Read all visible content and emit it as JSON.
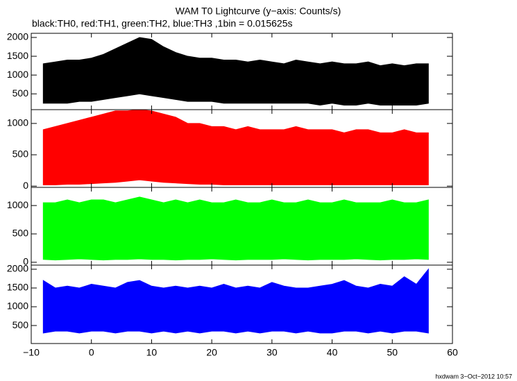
{
  "title": "WAM T0 Lightcurve (y−axis: Counts/s)",
  "subtitle": "black:TH0, red:TH1, green:TH2, blue:TH3 ,1bin = 0.015625s",
  "footer": "hxdwam  3−Oct−2012 10:57",
  "chart_data": [
    {
      "type": "band",
      "xlim": [
        -10,
        60
      ],
      "xticks": [
        -10,
        0,
        10,
        20,
        30,
        40,
        50,
        60
      ],
      "ylim": [
        80,
        2110
      ],
      "yticks": [
        500,
        1000,
        1500,
        2000
      ],
      "x": [
        -8,
        -6,
        -4,
        -2,
        0,
        2,
        4,
        6,
        8,
        10,
        12,
        14,
        16,
        18,
        20,
        22,
        24,
        26,
        28,
        30,
        32,
        34,
        36,
        38,
        40,
        42,
        44,
        46,
        48,
        50,
        52,
        54,
        56
      ],
      "series": [
        {
          "color": "#000000",
          "high": [
            1300,
            1350,
            1400,
            1400,
            1450,
            1550,
            1700,
            1850,
            2000,
            1950,
            1750,
            1600,
            1500,
            1450,
            1450,
            1400,
            1400,
            1350,
            1400,
            1350,
            1300,
            1400,
            1350,
            1300,
            1350,
            1300,
            1300,
            1350,
            1250,
            1300,
            1250,
            1300,
            1300
          ],
          "low": [
            250,
            250,
            250,
            300,
            300,
            350,
            400,
            450,
            500,
            450,
            400,
            350,
            300,
            300,
            300,
            250,
            250,
            250,
            250,
            250,
            250,
            250,
            250,
            200,
            250,
            200,
            200,
            250,
            200,
            200,
            200,
            200,
            250
          ]
        }
      ]
    },
    {
      "type": "band",
      "xlim": [
        -10,
        60
      ],
      "xticks": [
        -10,
        0,
        10,
        20,
        30,
        40,
        50,
        60
      ],
      "ylim": [
        -20,
        1220
      ],
      "yticks": [
        0,
        500,
        1000
      ],
      "x": [
        -8,
        -6,
        -4,
        -2,
        0,
        2,
        4,
        6,
        8,
        10,
        12,
        14,
        16,
        18,
        20,
        22,
        24,
        26,
        28,
        30,
        32,
        34,
        36,
        38,
        40,
        42,
        44,
        46,
        48,
        50,
        52,
        54,
        56
      ],
      "series": [
        {
          "color": "#ff0000",
          "high": [
            900,
            950,
            1000,
            1050,
            1100,
            1150,
            1200,
            1200,
            1220,
            1200,
            1150,
            1100,
            1000,
            1000,
            950,
            950,
            900,
            950,
            900,
            900,
            900,
            950,
            900,
            900,
            900,
            850,
            900,
            900,
            850,
            850,
            900,
            850,
            850
          ],
          "low": [
            20,
            20,
            30,
            30,
            40,
            50,
            60,
            80,
            100,
            80,
            60,
            50,
            40,
            30,
            30,
            20,
            20,
            20,
            20,
            20,
            20,
            20,
            20,
            20,
            20,
            20,
            20,
            20,
            20,
            20,
            20,
            20,
            20
          ]
        }
      ]
    },
    {
      "type": "band",
      "xlim": [
        -10,
        60
      ],
      "xticks": [
        -10,
        0,
        10,
        20,
        30,
        40,
        50,
        60
      ],
      "ylim": [
        -50,
        1320
      ],
      "yticks": [
        0,
        500,
        1000
      ],
      "x": [
        -8,
        -6,
        -4,
        -2,
        0,
        2,
        4,
        6,
        8,
        10,
        12,
        14,
        16,
        18,
        20,
        22,
        24,
        26,
        28,
        30,
        32,
        34,
        36,
        38,
        40,
        42,
        44,
        46,
        48,
        50,
        52,
        54,
        56
      ],
      "series": [
        {
          "color": "#00ff00",
          "high": [
            1050,
            1050,
            1100,
            1050,
            1100,
            1100,
            1050,
            1100,
            1150,
            1100,
            1050,
            1100,
            1050,
            1100,
            1050,
            1050,
            1100,
            1050,
            1050,
            1100,
            1050,
            1050,
            1100,
            1050,
            1050,
            1100,
            1050,
            1050,
            1050,
            1100,
            1050,
            1050,
            1100
          ],
          "low": [
            50,
            40,
            50,
            60,
            50,
            40,
            50,
            50,
            60,
            50,
            50,
            40,
            50,
            50,
            60,
            50,
            40,
            50,
            50,
            50,
            60,
            50,
            40,
            50,
            50,
            50,
            60,
            50,
            40,
            50,
            50,
            60,
            50
          ]
        }
      ]
    },
    {
      "type": "band",
      "xlim": [
        -10,
        60
      ],
      "xticks": [
        {
          "value": -10,
          "label": "−10"
        },
        0,
        10,
        20,
        30,
        40,
        50,
        60
      ],
      "ylim": [
        20,
        2110
      ],
      "yticks": [
        500,
        1000,
        1500,
        2000
      ],
      "x": [
        -8,
        -6,
        -4,
        -2,
        0,
        2,
        4,
        6,
        8,
        10,
        12,
        14,
        16,
        18,
        20,
        22,
        24,
        26,
        28,
        30,
        32,
        34,
        36,
        38,
        40,
        42,
        44,
        46,
        48,
        50,
        52,
        54,
        56
      ],
      "series": [
        {
          "color": "#0000ff",
          "high": [
            1700,
            1500,
            1550,
            1500,
            1600,
            1550,
            1500,
            1650,
            1700,
            1550,
            1500,
            1550,
            1500,
            1550,
            1500,
            1600,
            1500,
            1550,
            1500,
            1650,
            1550,
            1500,
            1500,
            1550,
            1600,
            1700,
            1550,
            1500,
            1600,
            1550,
            1800,
            1600,
            2000
          ],
          "low": [
            300,
            350,
            350,
            300,
            350,
            350,
            300,
            350,
            350,
            300,
            350,
            300,
            350,
            300,
            350,
            350,
            300,
            350,
            300,
            350,
            350,
            300,
            350,
            300,
            300,
            350,
            350,
            300,
            350,
            300,
            350,
            350,
            300
          ]
        }
      ]
    }
  ]
}
